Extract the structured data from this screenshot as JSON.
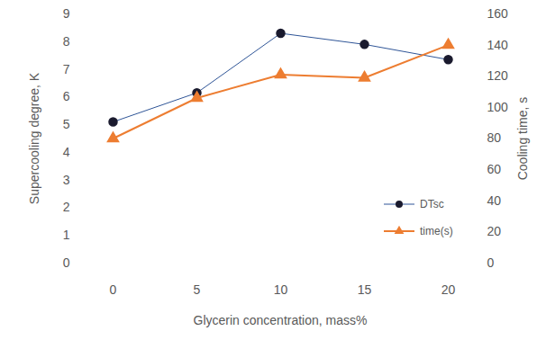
{
  "chart_data": {
    "type": "line",
    "categories": [
      "0",
      "5",
      "10",
      "15",
      "20"
    ],
    "x_label": "Glycerin concentration, mass%",
    "y_label": "Supercooling degree, K",
    "y2_label": "Cooling time, s",
    "ylim": [
      0,
      9
    ],
    "yticks": [
      0,
      1,
      2,
      3,
      4,
      5,
      6,
      7,
      8,
      9
    ],
    "y2lim": [
      0,
      160
    ],
    "y2ticks": [
      0,
      20,
      40,
      60,
      80,
      100,
      120,
      140,
      160
    ],
    "grid": false,
    "legend": "lower right",
    "series": [
      {
        "name": "DTsc",
        "color": "#2f5597",
        "marker": "circle",
        "values": [
          5.1,
          6.15,
          8.3,
          7.9,
          7.35
        ]
      },
      {
        "name": "time(s)",
        "color": "#ed7d31",
        "marker": "triangle",
        "axis": "y2",
        "values": [
          80,
          106,
          121,
          119,
          140
        ]
      }
    ]
  }
}
